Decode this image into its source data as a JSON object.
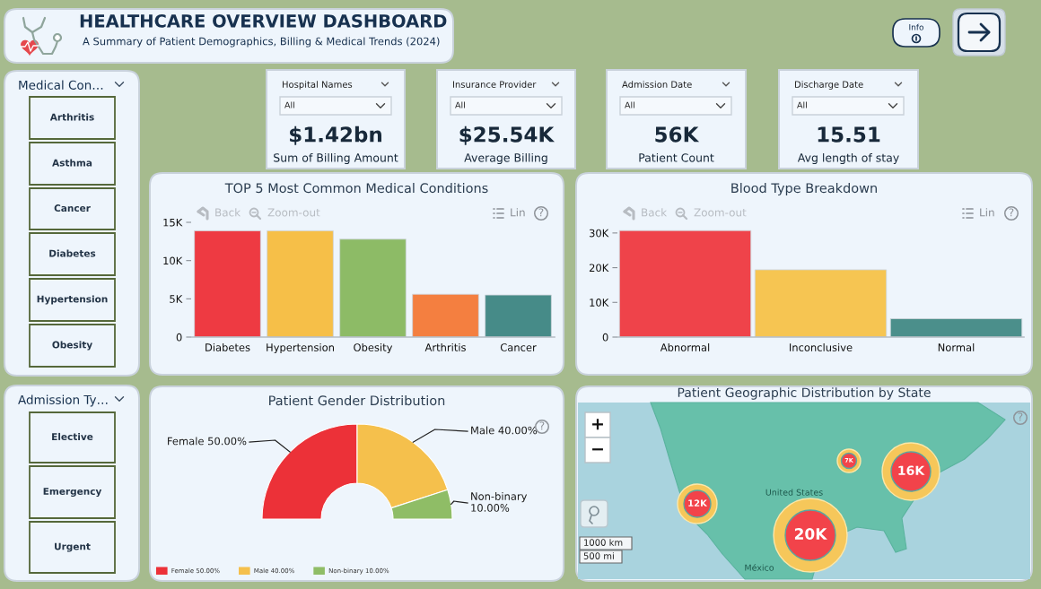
{
  "chart_data": [
    {
      "type": "other",
      "title": "HEALTHCARE OVERVIEW DASHBOARD",
      "subtitle": "A Summary of Patient Demographics, Billing & Medical Trends (2024)",
      "annotations": [
        "Info"
      ]
    },
    {
      "type": "other",
      "title": "Medical Con…",
      "annotations": [
        "Arthritis",
        "Asthma",
        "Cancer",
        "Diabetes",
        "Hypertension",
        "Obesity"
      ]
    },
    {
      "type": "other",
      "title": "Admission Ty…",
      "annotations": [
        "Elective",
        "Emergency",
        "Urgent"
      ]
    },
    {
      "type": "other",
      "title": "Hospital Names",
      "annotations": [
        "All",
        "$1.42bn",
        "Sum of Billing Amount"
      ]
    },
    {
      "type": "other",
      "title": "Insurance Provider",
      "annotations": [
        "All",
        "$25.54K",
        "Average Billing"
      ]
    },
    {
      "type": "other",
      "title": "Admission Date",
      "annotations": [
        "All",
        "56K",
        "Patient Count"
      ]
    },
    {
      "type": "other",
      "title": "Discharge Date",
      "annotations": [
        "All",
        "15.51",
        "Avg length of stay"
      ]
    },
    {
      "type": "bar",
      "title": "TOP 5 Most Common Medical Conditions",
      "categories": [
        "Diabetes",
        "Hypertension",
        "Obesity",
        "Arthritis",
        "Cancer"
      ],
      "values": [
        13900,
        13900,
        12800,
        5600,
        5500
      ],
      "colors": [
        "#ee3a42",
        "#f6bf48",
        "#8dbb66",
        "#f47f40",
        "#468b88"
      ],
      "ylim": [
        0,
        15000
      ],
      "yticks": [
        0,
        {
          "value": 5000,
          "label": "5K"
        },
        {
          "value": 10000,
          "label": "10K"
        },
        {
          "value": 15000,
          "label": "15K"
        }
      ],
      "annotations": [
        "Back",
        "Zoom-out",
        "Lin",
        "?"
      ]
    },
    {
      "type": "bar",
      "title": "Blood Type Breakdown",
      "categories": [
        "Abnormal",
        "Inconclusive",
        "Normal"
      ],
      "values": [
        30700,
        19400,
        5300
      ],
      "colors": [
        "#ef434a",
        "#f6c552",
        "#4b8f8b"
      ],
      "ylim": [
        0,
        31000
      ],
      "yticks": [
        0,
        {
          "value": 10000,
          "label": "10K"
        },
        {
          "value": 20000,
          "label": "20K"
        },
        {
          "value": 30000,
          "label": "30K"
        }
      ],
      "annotations": [
        "Back",
        "Zoom-out",
        "Lin",
        "?"
      ]
    },
    {
      "type": "donut",
      "title": "Patient Gender Distribution",
      "categories": [
        "Female",
        "Male",
        "Non-binary"
      ],
      "values": [
        50,
        40,
        10
      ],
      "colors": [
        "#ec3138",
        "#f5c04c",
        "#8fbd66"
      ],
      "value_labels": [
        "50.00%",
        "40.00%",
        "10.00%"
      ],
      "legend": "bottom left",
      "annotations": [
        "?"
      ]
    },
    {
      "type": "other",
      "title": "Patient Geographic Distribution by State",
      "annotations": [
        "20K",
        "16K",
        "12K",
        "7K",
        "+",
        "−",
        "1000 km",
        "500 mi",
        "United States",
        "México",
        "?"
      ]
    }
  ]
}
